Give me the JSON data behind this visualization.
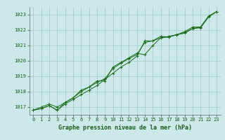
{
  "xlabel": "Graphe pression niveau de la mer (hPa)",
  "bg_color": "#cce8e8",
  "grid_color": "#aacccc",
  "line_color": "#1a6b1a",
  "x": [
    0,
    1,
    2,
    3,
    4,
    5,
    6,
    7,
    8,
    9,
    10,
    11,
    12,
    13,
    14,
    15,
    16,
    17,
    18,
    19,
    20,
    21,
    22,
    23
  ],
  "line1": [
    1016.8,
    1016.9,
    1017.1,
    1016.8,
    1017.2,
    1017.5,
    1017.8,
    1018.1,
    1018.4,
    1018.8,
    1019.2,
    1019.6,
    1019.9,
    1020.3,
    1021.3,
    1021.3,
    1021.6,
    1021.55,
    1021.7,
    1021.8,
    1022.1,
    1022.2,
    1022.9,
    1023.2
  ],
  "line2": [
    1016.8,
    1017.0,
    1017.2,
    1017.0,
    1017.3,
    1017.6,
    1018.0,
    1018.3,
    1018.7,
    1018.7,
    1019.6,
    1019.9,
    1020.2,
    1020.5,
    1020.4,
    1021.0,
    1021.5,
    1021.55,
    1021.7,
    1021.9,
    1022.2,
    1022.2,
    1022.9,
    1023.2
  ],
  "line3": [
    1016.8,
    1016.9,
    1017.1,
    1016.8,
    1017.3,
    1017.6,
    1018.1,
    1018.3,
    1018.6,
    1018.85,
    1019.5,
    1019.85,
    1020.15,
    1020.4,
    1021.2,
    1021.3,
    1021.5,
    1021.6,
    1021.7,
    1021.85,
    1022.1,
    1022.15,
    1022.85,
    1023.2
  ],
  "ylim": [
    1016.5,
    1023.5
  ],
  "xlim": [
    -0.5,
    23.5
  ],
  "yticks": [
    1017,
    1018,
    1019,
    1020,
    1021,
    1022,
    1023
  ],
  "xticks": [
    0,
    1,
    2,
    3,
    4,
    5,
    6,
    7,
    8,
    9,
    10,
    11,
    12,
    13,
    14,
    15,
    16,
    17,
    18,
    19,
    20,
    21,
    22,
    23
  ],
  "tick_fontsize": 5.0,
  "label_fontsize": 6.0
}
